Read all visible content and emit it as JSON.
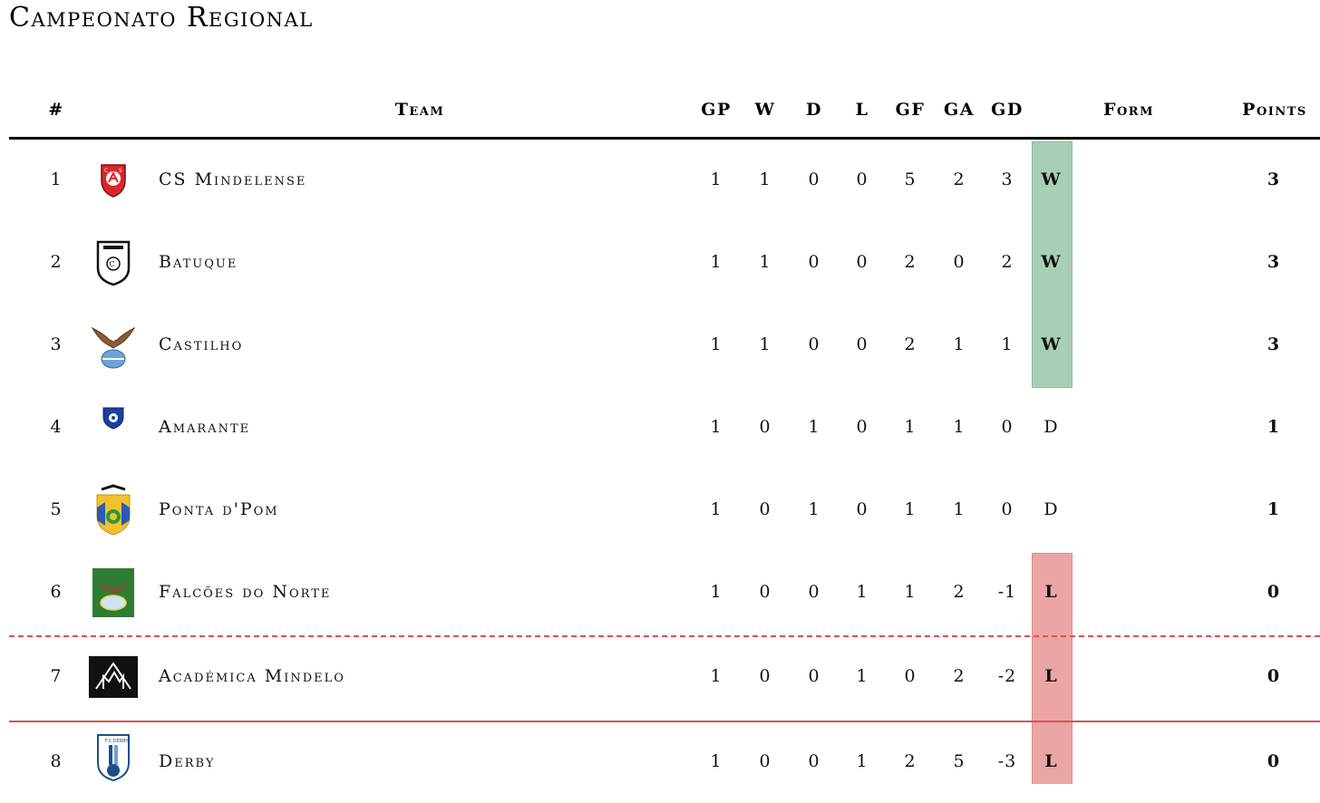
{
  "title": "Campeonato Regional",
  "headers": {
    "rank": "#",
    "team": "Team",
    "gp": "GP",
    "w": "W",
    "d": "D",
    "l": "L",
    "gf": "GF",
    "ga": "GA",
    "gd": "GD",
    "form": "Form",
    "points": "Points"
  },
  "colors": {
    "win": "#a7cfb6",
    "loss": "#eba5a5",
    "relegation_line": "#d9534f"
  },
  "rows": [
    {
      "rank": "1",
      "team": "CS Mindelense",
      "logo": "cs-mindelense-crest-icon",
      "gp": "1",
      "w": "1",
      "d": "0",
      "l": "0",
      "gf": "5",
      "ga": "2",
      "gd": "3",
      "form": "W",
      "points": "3"
    },
    {
      "rank": "2",
      "team": "Batuque",
      "logo": "batuque-crest-icon",
      "gp": "1",
      "w": "1",
      "d": "0",
      "l": "0",
      "gf": "2",
      "ga": "0",
      "gd": "2",
      "form": "W",
      "points": "3"
    },
    {
      "rank": "3",
      "team": "Castilho",
      "logo": "castilho-eagle-crest-icon",
      "gp": "1",
      "w": "1",
      "d": "0",
      "l": "0",
      "gf": "2",
      "ga": "1",
      "gd": "1",
      "form": "W",
      "points": "3"
    },
    {
      "rank": "4",
      "team": "Amarante",
      "logo": "amarante-crest-icon",
      "gp": "1",
      "w": "0",
      "d": "1",
      "l": "0",
      "gf": "1",
      "ga": "1",
      "gd": "0",
      "form": "D",
      "points": "1"
    },
    {
      "rank": "5",
      "team": "Ponta d'Pom",
      "logo": "ponta-dpom-crest-icon",
      "gp": "1",
      "w": "0",
      "d": "1",
      "l": "0",
      "gf": "1",
      "ga": "1",
      "gd": "0",
      "form": "D",
      "points": "1"
    },
    {
      "rank": "6",
      "team": "Falcões do Norte",
      "logo": "falcoes-do-norte-crest-icon",
      "gp": "1",
      "w": "0",
      "d": "0",
      "l": "1",
      "gf": "1",
      "ga": "2",
      "gd": "-1",
      "form": "L",
      "points": "0"
    },
    {
      "rank": "7",
      "team": "Académica Mindelo",
      "logo": "academica-mindelo-crest-icon",
      "gp": "1",
      "w": "0",
      "d": "0",
      "l": "1",
      "gf": "0",
      "ga": "2",
      "gd": "-2",
      "form": "L",
      "points": "0"
    },
    {
      "rank": "8",
      "team": "Derby",
      "logo": "derby-crest-icon",
      "gp": "1",
      "w": "0",
      "d": "0",
      "l": "1",
      "gf": "2",
      "ga": "5",
      "gd": "-3",
      "form": "L",
      "points": "0"
    }
  ]
}
